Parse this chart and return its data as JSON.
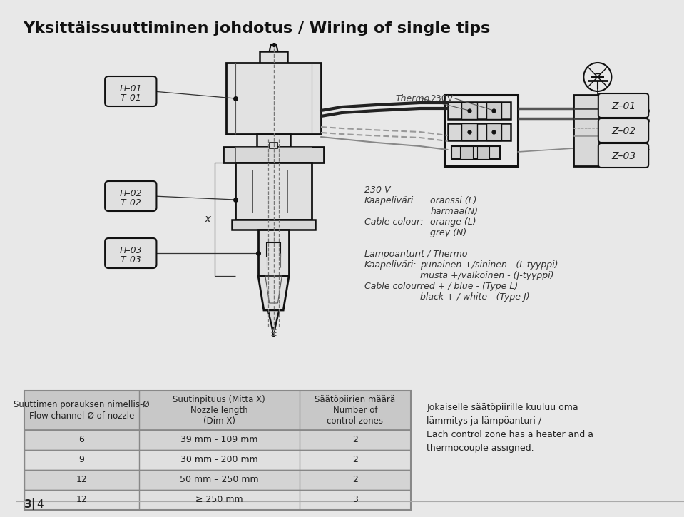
{
  "title": "Yksittäissuuttiminen johdotus / Wiring of single tips",
  "bg_color": "#e8e8e8",
  "table_header_bg": "#c8c8c8",
  "table_row_bg_alt": "#d4d4d4",
  "table_row_bg": "#e0e0e0",
  "table_border_color": "#888888",
  "col1_header": "Suuttimen porauksen nimellis-Ø\nFlow channel-Ø of nozzle",
  "col2_header": "Suutinpituus (Mitta X)\nNozzle length\n(Dim X)",
  "col3_header": "Säätöpiirien määrä\nNumber of\ncontrol zones",
  "table_data": [
    [
      "6",
      "39 mm - 109 mm",
      "2"
    ],
    [
      "9",
      "30 mm - 200 mm",
      "2"
    ],
    [
      "12",
      "50 mm – 250 mm",
      "2"
    ],
    [
      "12",
      "≥ 250 mm",
      "3"
    ]
  ],
  "note_text": "Jokaiselle säätöpiirille kuuluu oma\nlämmitys ja lämpöanturi /\nEach control zone has a heater and a\nthermocouple assigned.",
  "page_label": "3 4",
  "power_label": "230V",
  "thermo_label": "Thermo",
  "v230_label": "230 V",
  "cable_colour_label": "Kaapeliväri",
  "orange_l": "oranssi (L)",
  "grey_n": "harmaa(N)",
  "cable_colour_en": "Cable colour:",
  "orange_l_en": "orange (L)",
  "grey_n_en": "grey (N)",
  "thermo_section": "Lämpöanturit / Thermo",
  "kaapeli_label": "Kaapeliväri:",
  "kaapeli_val1": "punainen +/sininen - (L-tyyppi)",
  "kaapeli_val2": "musta +/valkoinen - (J-tyyppi)",
  "cable_colour2": "Cable colour:",
  "cable_val1": "red + / blue - (Type L)",
  "cable_val2": "black + / white - (Type J)",
  "label_H01": "H–01",
  "label_T01": "T–01",
  "label_H02": "H–02",
  "label_T02": "T–02",
  "label_H03": "H–03",
  "label_T03": "T–03",
  "label_Z01": "Z–01",
  "label_Z02": "Z–02",
  "label_Z03": "Z–03",
  "label_X": "x",
  "lc": "#333333",
  "lc_thick": "#111111"
}
